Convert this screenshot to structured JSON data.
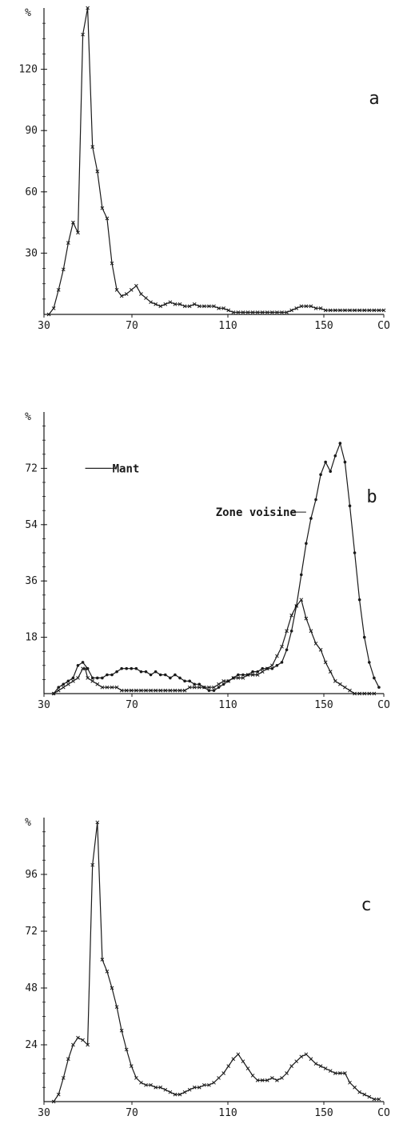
{
  "colors": {
    "ink": "#1a1a1a",
    "background": "#ffffff"
  },
  "chart_data": [
    {
      "type": "line",
      "panel_label": "a",
      "x_ticks": [
        "30",
        "70",
        "110",
        "150",
        "CO"
      ],
      "y_ticks": [
        "30",
        "60",
        "90",
        "120"
      ],
      "y_top_label": "%",
      "xlim": [
        30,
        170
      ],
      "ylim": [
        0,
        150
      ],
      "series": [
        {
          "marker": "x",
          "x": [
            32,
            34,
            36,
            38,
            40,
            42,
            44,
            46,
            48,
            50,
            52,
            54,
            56,
            58,
            60,
            62,
            64,
            66,
            68,
            70,
            72,
            74,
            76,
            78,
            80,
            82,
            84,
            86,
            88,
            90,
            92,
            94,
            96,
            98,
            100,
            102,
            104,
            106,
            108,
            110,
            112,
            114,
            116,
            118,
            120,
            122,
            124,
            126,
            128,
            130,
            132,
            134,
            136,
            138,
            140,
            142,
            144,
            146,
            148,
            150,
            152,
            154,
            156,
            158,
            160,
            162,
            164,
            166,
            168,
            170
          ],
          "y": [
            0,
            3,
            12,
            22,
            35,
            45,
            40,
            137,
            150,
            82,
            70,
            52,
            47,
            25,
            12,
            9,
            10,
            12,
            14,
            10,
            8,
            6,
            5,
            4,
            5,
            6,
            5,
            5,
            4,
            4,
            5,
            4,
            4,
            4,
            4,
            3,
            3,
            2,
            1,
            1,
            1,
            1,
            1,
            1,
            1,
            1,
            1,
            1,
            1,
            1,
            2,
            3,
            4,
            4,
            4,
            3,
            3,
            2,
            2,
            2,
            2,
            2,
            2,
            2,
            2,
            2,
            2,
            2,
            2,
            2
          ]
        }
      ]
    },
    {
      "type": "line",
      "panel_label": "b",
      "x_ticks": [
        "30",
        "70",
        "110",
        "150",
        "CO"
      ],
      "y_ticks": [
        "18",
        "36",
        "54",
        "72"
      ],
      "y_top_label": "%",
      "xlim": [
        30,
        170
      ],
      "ylim": [
        0,
        90
      ],
      "annotations": [
        {
          "text": "Mant",
          "series_index": 0,
          "x": 47,
          "y": 72
        },
        {
          "text": "Zone voisine",
          "series_index": 1,
          "x": 138,
          "y": 58
        }
      ],
      "series": [
        {
          "marker": "x",
          "x": [
            34,
            36,
            38,
            40,
            42,
            44,
            46,
            47,
            48,
            50,
            52,
            54,
            56,
            58,
            60,
            62,
            64,
            66,
            68,
            70,
            72,
            74,
            76,
            78,
            80,
            82,
            84,
            86,
            88,
            90,
            92,
            94,
            96,
            98,
            100,
            102,
            104,
            106,
            108,
            110,
            112,
            114,
            116,
            118,
            120,
            122,
            124,
            126,
            128,
            130,
            132,
            134,
            136,
            138,
            140,
            142,
            144,
            146,
            148,
            150,
            152,
            154,
            156,
            158,
            160,
            162,
            164,
            166
          ],
          "y": [
            0,
            1,
            2,
            3,
            4,
            5,
            8,
            8,
            5,
            4,
            3,
            2,
            2,
            2,
            2,
            1,
            1,
            1,
            1,
            1,
            1,
            1,
            1,
            1,
            1,
            1,
            1,
            1,
            1,
            2,
            2,
            2,
            2,
            2,
            2,
            3,
            4,
            4,
            5,
            5,
            5,
            6,
            6,
            6,
            7,
            8,
            9,
            12,
            15,
            20,
            25,
            28,
            30,
            24,
            20,
            16,
            14,
            10,
            7,
            4,
            3,
            2,
            1,
            0,
            0,
            0,
            0,
            0
          ]
        },
        {
          "marker": "dot",
          "x": [
            34,
            36,
            38,
            40,
            42,
            44,
            46,
            48,
            50,
            52,
            54,
            56,
            58,
            60,
            62,
            64,
            66,
            68,
            70,
            72,
            74,
            76,
            78,
            80,
            82,
            84,
            86,
            88,
            90,
            92,
            94,
            96,
            98,
            100,
            102,
            104,
            106,
            108,
            110,
            112,
            114,
            116,
            118,
            120,
            122,
            124,
            126,
            128,
            130,
            132,
            134,
            136,
            138,
            140,
            142,
            144,
            146,
            148,
            150,
            152,
            154,
            156,
            158,
            160,
            162,
            164,
            166,
            168
          ],
          "y": [
            0,
            2,
            3,
            4,
            5,
            9,
            10,
            8,
            5,
            5,
            5,
            6,
            6,
            7,
            8,
            8,
            8,
            8,
            7,
            7,
            6,
            7,
            6,
            6,
            5,
            6,
            5,
            4,
            4,
            3,
            3,
            2,
            1,
            1,
            2,
            3,
            4,
            5,
            6,
            6,
            6,
            7,
            7,
            8,
            8,
            8,
            9,
            10,
            14,
            20,
            28,
            38,
            48,
            56,
            62,
            70,
            74,
            71,
            76,
            80,
            74,
            60,
            45,
            30,
            18,
            10,
            5,
            2
          ]
        }
      ]
    },
    {
      "type": "line",
      "panel_label": "c",
      "x_ticks": [
        "30",
        "70",
        "110",
        "150",
        "CO"
      ],
      "y_ticks": [
        "24",
        "48",
        "72",
        "96"
      ],
      "y_top_label": "%",
      "xlim": [
        30,
        170
      ],
      "ylim": [
        0,
        120
      ],
      "series": [
        {
          "marker": "x",
          "x": [
            34,
            36,
            38,
            40,
            42,
            44,
            46,
            48,
            50,
            52,
            54,
            56,
            58,
            60,
            62,
            64,
            66,
            68,
            70,
            72,
            74,
            76,
            78,
            80,
            82,
            84,
            86,
            88,
            90,
            92,
            94,
            96,
            98,
            100,
            102,
            104,
            106,
            108,
            110,
            112,
            114,
            116,
            118,
            120,
            122,
            124,
            126,
            128,
            130,
            132,
            134,
            136,
            138,
            140,
            142,
            144,
            146,
            148,
            150,
            152,
            154,
            156,
            158,
            160,
            162,
            164,
            166,
            168
          ],
          "y": [
            0,
            3,
            10,
            18,
            24,
            27,
            26,
            24,
            100,
            118,
            60,
            55,
            48,
            40,
            30,
            22,
            15,
            10,
            8,
            7,
            7,
            6,
            6,
            5,
            4,
            3,
            3,
            4,
            5,
            6,
            6,
            7,
            7,
            8,
            10,
            12,
            15,
            18,
            20,
            17,
            14,
            11,
            9,
            9,
            9,
            10,
            9,
            10,
            12,
            15,
            17,
            19,
            20,
            18,
            16,
            15,
            14,
            13,
            12,
            12,
            12,
            8,
            6,
            4,
            3,
            2,
            1,
            1
          ]
        }
      ]
    }
  ]
}
